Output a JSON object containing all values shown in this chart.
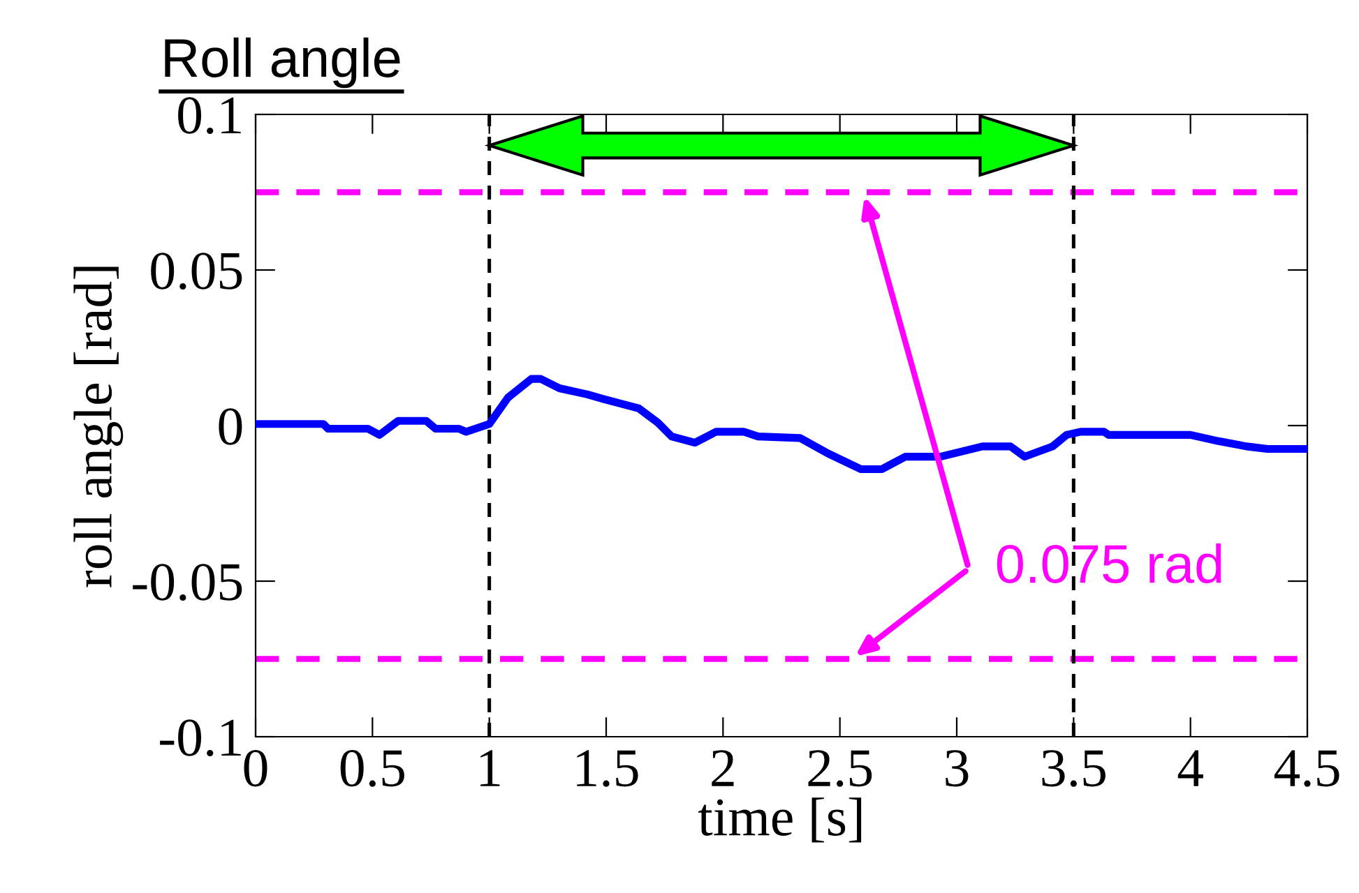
{
  "chart_data": {
    "type": "line",
    "title": "Roll angle",
    "xlabel": "time [s]",
    "ylabel": "roll angle [rad]",
    "series": [
      {
        "color": "#0000ff",
        "x": [
          0,
          0.29,
          0.31,
          0.48,
          0.53,
          0.61,
          0.73,
          0.77,
          0.87,
          0.9,
          0.94,
          1.0,
          1.08,
          1.18,
          1.22,
          1.3,
          1.42,
          1.49,
          1.64,
          1.72,
          1.78,
          1.88,
          1.97,
          2.09,
          2.15,
          2.33,
          2.45,
          2.59,
          2.68,
          2.78,
          2.93,
          3.11,
          3.23,
          3.29,
          3.41,
          3.47,
          3.53,
          3.63,
          3.65,
          4.0,
          4.12,
          4.24,
          4.33,
          4.5
        ],
        "values": [
          0.0005,
          0.0005,
          -0.001,
          -0.001,
          -0.003,
          0.0015,
          0.0015,
          -0.001,
          -0.001,
          -0.002,
          -0.001,
          0.0005,
          0.009,
          0.015,
          0.015,
          0.012,
          0.01,
          0.0085,
          0.0055,
          0.001,
          -0.0035,
          -0.0055,
          -0.002,
          -0.002,
          -0.0035,
          -0.004,
          -0.009,
          -0.014,
          -0.014,
          -0.01,
          -0.01,
          -0.0067,
          -0.0067,
          -0.01,
          -0.0067,
          -0.003,
          -0.002,
          -0.002,
          -0.003,
          -0.003,
          -0.005,
          -0.0067,
          -0.0075,
          -0.0075
        ]
      }
    ],
    "xlim": [
      0,
      4.5
    ],
    "xticks": [
      0,
      0.5,
      1,
      1.5,
      2,
      2.5,
      3,
      3.5,
      4,
      4.5
    ],
    "ylim": [
      -0.1,
      0.1
    ],
    "yticks": [
      -0.1,
      -0.05,
      0,
      0.05,
      0.1
    ],
    "ref_lines": [
      {
        "axis": "y",
        "value": 0.075,
        "color": "#ff00ff",
        "line_style": "dashed"
      },
      {
        "axis": "y",
        "value": -0.075,
        "color": "#ff00ff",
        "line_style": "dashed"
      },
      {
        "axis": "x",
        "value": 1,
        "color": "#000000",
        "line_style": "dashed"
      },
      {
        "axis": "x",
        "value": 3.5,
        "color": "#000000",
        "line_style": "dashed"
      }
    ],
    "annotations": [
      "0.075 rad"
    ],
    "grid": false,
    "marker": "none",
    "line_style": "solid"
  }
}
